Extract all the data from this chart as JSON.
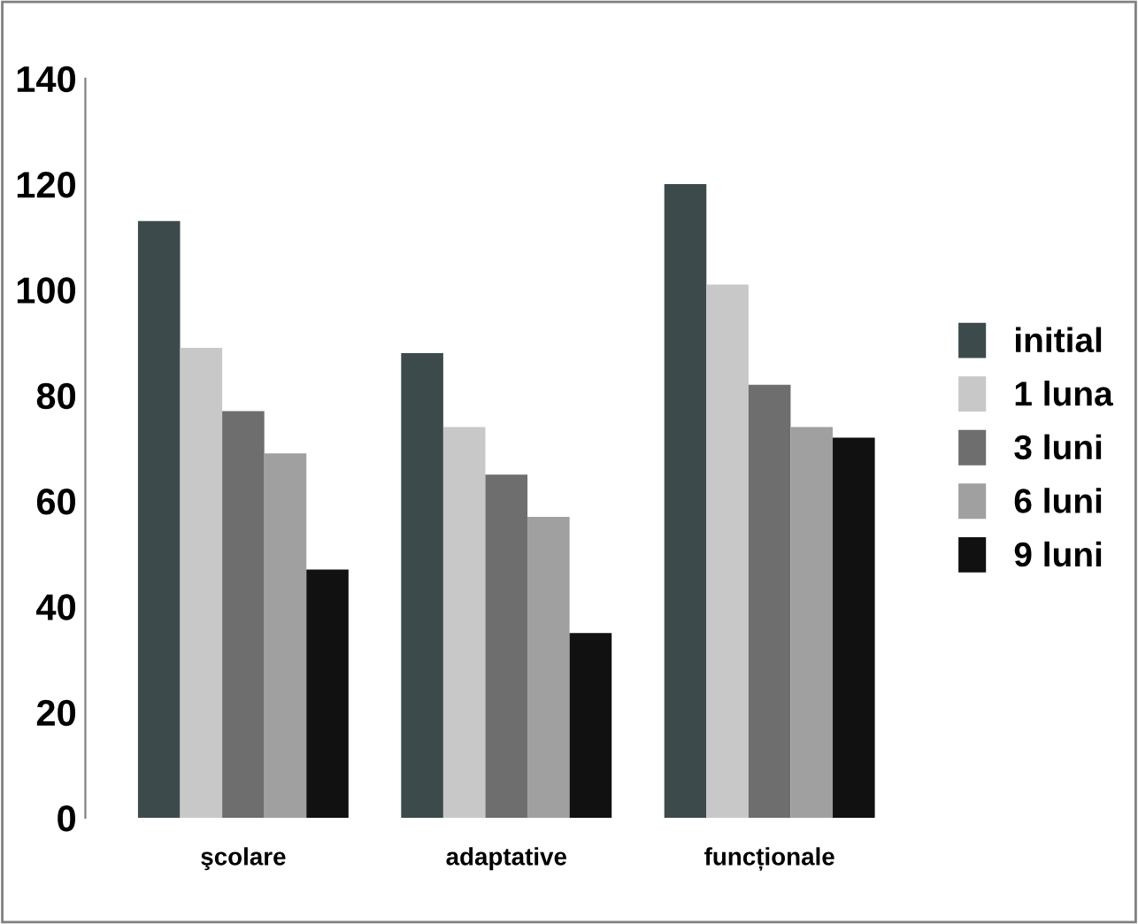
{
  "chart_data": {
    "type": "bar",
    "categories": [
      "şcolare",
      "adaptative",
      "funcționale"
    ],
    "series": [
      {
        "name": "initial",
        "color": "#3c4a4b",
        "values": [
          113,
          88,
          120
        ]
      },
      {
        "name": "1 luna",
        "color": "#c8c8c8",
        "values": [
          89,
          74,
          101
        ]
      },
      {
        "name": "3 luni",
        "color": "#6e6e6e",
        "values": [
          77,
          65,
          82
        ]
      },
      {
        "name": "6 luni",
        "color": "#a0a0a0",
        "values": [
          69,
          57,
          74
        ]
      },
      {
        "name": "9 luni",
        "color": "#111111",
        "values": [
          47,
          35,
          72
        ]
      }
    ],
    "ylim": [
      0,
      140
    ],
    "yticks": [
      0,
      20,
      40,
      60,
      80,
      100,
      120,
      140
    ],
    "grid": false,
    "legend": "right"
  }
}
